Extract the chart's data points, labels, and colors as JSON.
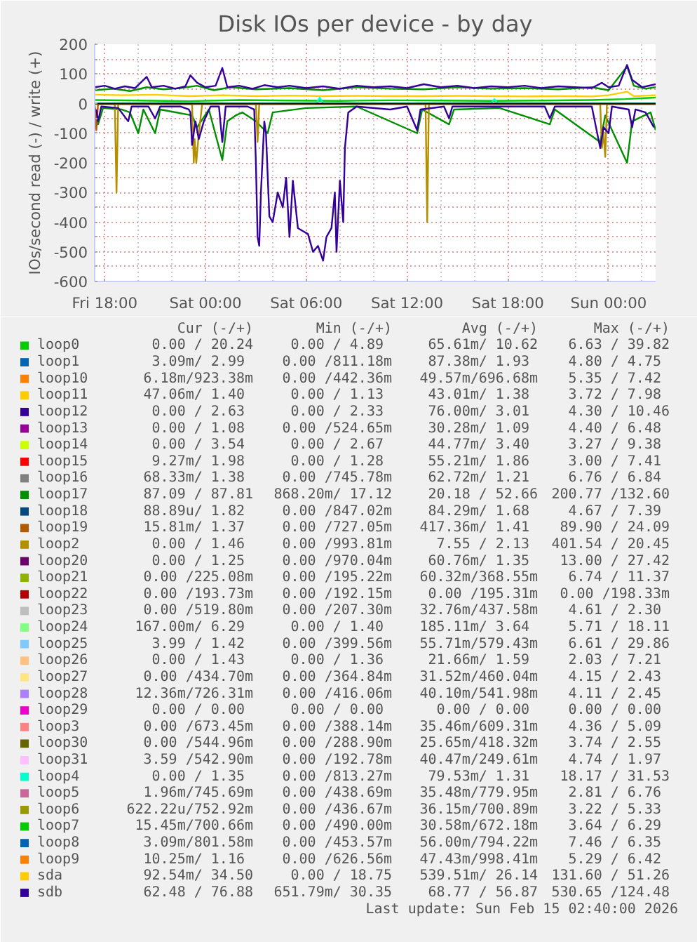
{
  "chart_data": {
    "type": "line",
    "title": "Disk IOs per device - by day",
    "ylabel": "IOs/second read (-) / write (+)",
    "xlim": [
      "2026-02-13T17:24",
      "2026-02-15T02:48"
    ],
    "ylim": [
      -600,
      200
    ],
    "xticks": [
      {
        "value": "2026-02-13T18:00",
        "label": "Fri 18:00"
      },
      {
        "value": "2026-02-14T00:00",
        "label": "Sat 00:00"
      },
      {
        "value": "2026-02-14T06:00",
        "label": "Sat 06:00"
      },
      {
        "value": "2026-02-14T12:00",
        "label": "Sat 12:00"
      },
      {
        "value": "2026-02-14T18:00",
        "label": "Sat 18:00"
      },
      {
        "value": "2026-02-15T00:00",
        "label": "Sun 00:00"
      }
    ],
    "yticks": [
      200,
      100,
      0,
      -100,
      -200,
      -300,
      -400,
      -500,
      -600,
      {
        "value": 150,
        "label": null
      },
      {
        "value": 50,
        "label": null
      },
      {
        "value": -50,
        "label": null
      },
      {
        "value": -150,
        "label": null
      },
      {
        "value": -250,
        "label": null
      },
      {
        "value": -350,
        "label": null
      },
      {
        "value": -450,
        "label": null
      },
      {
        "value": -550,
        "label": null
      }
    ],
    "grid": true,
    "legend": "bottom",
    "series": [
      {
        "name": "loop0",
        "color": "#00cc00",
        "x": [
          "2026-02-13T17:24",
          "2026-02-13T20:00",
          "2026-02-13T23:00",
          "2026-02-14T02:00",
          "2026-02-14T05:00",
          "2026-02-14T08:00",
          "2026-02-14T11:00",
          "2026-02-14T14:00",
          "2026-02-14T17:00",
          "2026-02-14T20:00",
          "2026-02-14T23:00",
          "2026-02-15T01:00",
          "2026-02-15T02:48"
        ],
        "values": [
          12,
          10,
          8,
          12,
          10,
          9,
          11,
          10,
          9,
          10,
          12,
          15,
          20
        ]
      },
      {
        "name": "loop1",
        "color": "#0066b3",
        "values": [
          null,
          null
        ]
      },
      {
        "name": "loop10",
        "color": "#ff8000",
        "values": [
          null,
          null
        ]
      },
      {
        "name": "loop11",
        "color": "#ffcc00",
        "values": [
          null,
          null
        ]
      },
      {
        "name": "loop12",
        "color": "#330099",
        "values": [
          null,
          null
        ]
      },
      {
        "name": "loop13",
        "color": "#990099",
        "values": [
          null,
          null
        ]
      },
      {
        "name": "loop14",
        "color": "#ccff00",
        "values": [
          null,
          null
        ]
      },
      {
        "name": "loop15",
        "color": "#ff0000",
        "values": [
          null,
          null
        ]
      },
      {
        "name": "loop16",
        "color": "#808080",
        "values": [
          null,
          null
        ]
      },
      {
        "name": "loop17",
        "color": "#008f00",
        "x": [
          "2026-02-13T17:24",
          "2026-02-13T18:30",
          "2026-02-13T19:30",
          "2026-02-13T20:30",
          "2026-02-13T21:30",
          "2026-02-13T22:30",
          "2026-02-13T23:30",
          "2026-02-14T00:30",
          "2026-02-14T01:30",
          "2026-02-14T03:00",
          "2026-02-14T05:00",
          "2026-02-14T07:00",
          "2026-02-14T09:00",
          "2026-02-14T11:00",
          "2026-02-14T13:00",
          "2026-02-14T15:00",
          "2026-02-14T17:00",
          "2026-02-14T19:00",
          "2026-02-14T21:00",
          "2026-02-14T23:00",
          "2026-02-15T00:00",
          "2026-02-15T01:06",
          "2026-02-15T01:30",
          "2026-02-15T02:12",
          "2026-02-15T02:48"
        ],
        "values": [
          45,
          50,
          42,
          55,
          48,
          52,
          60,
          45,
          55,
          48,
          52,
          45,
          55,
          50,
          48,
          55,
          50,
          52,
          48,
          55,
          45,
          125,
          60,
          50,
          55
        ]
      },
      {
        "name": "loop18",
        "color": "#00487d",
        "values": [
          null,
          null
        ]
      },
      {
        "name": "loop19",
        "color": "#b35a00",
        "values": [
          null,
          null
        ]
      },
      {
        "name": "loop2",
        "color": "#b38f00",
        "values": [
          null,
          null
        ]
      },
      {
        "name": "loop20",
        "color": "#6b006b",
        "values": [
          null,
          null
        ]
      },
      {
        "name": "loop21",
        "color": "#8fb300",
        "values": [
          null,
          null
        ]
      },
      {
        "name": "loop22",
        "color": "#b30000",
        "values": [
          null,
          null
        ]
      },
      {
        "name": "loop23",
        "color": "#bebebe",
        "values": [
          null,
          null
        ]
      },
      {
        "name": "loop24",
        "color": "#80ff80",
        "values": [
          null,
          null
        ]
      },
      {
        "name": "loop25",
        "color": "#80c9ff",
        "values": [
          null,
          null
        ]
      },
      {
        "name": "loop26",
        "color": "#ffc080",
        "values": [
          null,
          null
        ]
      },
      {
        "name": "loop27",
        "color": "#ffe680",
        "values": [
          null,
          null
        ]
      },
      {
        "name": "loop28",
        "color": "#aa80ff",
        "values": [
          null,
          null
        ]
      },
      {
        "name": "loop29",
        "color": "#ee00cc",
        "values": [
          null,
          null
        ]
      },
      {
        "name": "loop3",
        "color": "#ff8080",
        "values": [
          null,
          null
        ]
      },
      {
        "name": "loop30",
        "color": "#666600",
        "values": [
          null,
          null
        ]
      },
      {
        "name": "loop31",
        "color": "#ffbfff",
        "values": [
          null,
          null
        ]
      },
      {
        "name": "loop4",
        "color": "#00ffcc",
        "x": [
          "2026-02-13T17:24",
          "2026-02-14T06:36",
          "2026-02-14T06:48",
          "2026-02-14T07:00",
          "2026-02-14T17:00",
          "2026-02-14T17:12",
          "2026-02-14T17:24",
          "2026-02-15T02:48"
        ],
        "values": [
          1,
          1,
          20,
          1,
          1,
          15,
          1,
          1
        ]
      },
      {
        "name": "loop5",
        "color": "#cc6699",
        "values": [
          null,
          null
        ]
      },
      {
        "name": "loop6",
        "color": "#999900",
        "values": [
          null,
          null
        ]
      },
      {
        "name": "loop7",
        "color": "#00cc00",
        "values": [
          null,
          null
        ]
      },
      {
        "name": "loop8",
        "color": "#0066b3",
        "values": [
          null,
          null
        ]
      },
      {
        "name": "loop9",
        "color": "#ff8000",
        "values": [
          null,
          null
        ]
      },
      {
        "name": "sda",
        "color": "#ffcc00",
        "x": [
          "2026-02-13T17:24",
          "2026-02-13T19:00",
          "2026-02-13T21:00",
          "2026-02-13T23:00",
          "2026-02-14T01:00",
          "2026-02-14T03:00",
          "2026-02-14T05:00",
          "2026-02-14T07:00",
          "2026-02-14T09:00",
          "2026-02-14T11:00",
          "2026-02-14T13:00",
          "2026-02-14T15:00",
          "2026-02-14T17:00",
          "2026-02-14T19:00",
          "2026-02-14T21:00",
          "2026-02-14T23:00",
          "2026-02-15T00:00",
          "2026-02-15T01:06",
          "2026-02-15T01:30",
          "2026-02-15T02:48"
        ],
        "values": [
          30,
          28,
          30,
          25,
          28,
          25,
          27,
          25,
          26,
          25,
          25,
          26,
          25,
          24,
          25,
          24,
          28,
          40,
          25,
          28
        ]
      },
      {
        "name": "sdb",
        "color": "#330099",
        "x": [
          "2026-02-13T17:24",
          "2026-02-13T18:00",
          "2026-02-13T18:36",
          "2026-02-13T19:12",
          "2026-02-13T19:48",
          "2026-02-13T20:30",
          "2026-02-13T20:48",
          "2026-02-13T21:30",
          "2026-02-13T22:12",
          "2026-02-13T22:48",
          "2026-02-13T23:06",
          "2026-02-13T23:30",
          "2026-02-14T00:00",
          "2026-02-14T00:36",
          "2026-02-14T01:00",
          "2026-02-14T01:18",
          "2026-02-14T02:00",
          "2026-02-14T02:48",
          "2026-02-14T03:30",
          "2026-02-14T04:18",
          "2026-02-14T05:00",
          "2026-02-14T06:00",
          "2026-02-14T07:00",
          "2026-02-14T08:00",
          "2026-02-14T09:00",
          "2026-02-14T10:00",
          "2026-02-14T11:00",
          "2026-02-14T12:00",
          "2026-02-14T13:00",
          "2026-02-14T14:00",
          "2026-02-14T15:00",
          "2026-02-14T16:00",
          "2026-02-14T17:00",
          "2026-02-14T18:00",
          "2026-02-14T19:00",
          "2026-02-14T20:00",
          "2026-02-14T21:00",
          "2026-02-14T22:00",
          "2026-02-14T23:00",
          "2026-02-14T23:36",
          "2026-02-15T00:00",
          "2026-02-15T00:36",
          "2026-02-15T01:06",
          "2026-02-15T01:24",
          "2026-02-15T02:00",
          "2026-02-15T02:48"
        ],
        "values": [
          55,
          60,
          50,
          58,
          52,
          90,
          55,
          60,
          50,
          58,
          95,
          70,
          55,
          60,
          120,
          55,
          60,
          50,
          62,
          55,
          60,
          52,
          58,
          50,
          60,
          55,
          58,
          52,
          65,
          55,
          60,
          52,
          58,
          55,
          60,
          52,
          58,
          55,
          52,
          70,
          55,
          60,
          130,
          80,
          55,
          65
        ]
      },
      {
        "color": "#008f00",
        "x": [
          "2026-02-13T17:24",
          "2026-02-13T17:36",
          "2026-02-13T17:54",
          "2026-02-13T19:00",
          "2026-02-13T19:30",
          "2026-02-13T20:00",
          "2026-02-13T20:18",
          "2026-02-13T21:00",
          "2026-02-13T21:18",
          "2026-02-13T23:12",
          "2026-02-13T23:30",
          "2026-02-14T00:12",
          "2026-02-14T01:00",
          "2026-02-14T01:18",
          "2026-02-14T01:48",
          "2026-02-14T02:12",
          "2026-02-14T03:00",
          "2026-02-14T03:42",
          "2026-02-14T04:00",
          "2026-02-14T06:00",
          "2026-02-14T09:00",
          "2026-02-14T12:36",
          "2026-02-14T12:54",
          "2026-02-14T14:30",
          "2026-02-14T14:48",
          "2026-02-14T17:30",
          "2026-02-14T20:30",
          "2026-02-14T20:48",
          "2026-02-14T23:30",
          "2026-02-14T23:48",
          "2026-02-15T01:06",
          "2026-02-15T01:24",
          "2026-02-15T02:30",
          "2026-02-15T02:48"
        ],
        "values": [
          -10,
          -70,
          -15,
          -20,
          -30,
          -100,
          -20,
          -100,
          -20,
          -40,
          -80,
          -20,
          -190,
          -60,
          -40,
          -30,
          -60,
          -100,
          -30,
          -15,
          -10,
          -100,
          -20,
          -70,
          -20,
          -15,
          -70,
          -20,
          -130,
          -40,
          -200,
          -60,
          -30,
          -90
        ]
      },
      {
        "color": "#b38f00",
        "x": [
          "2026-02-13T17:24",
          "2026-02-13T18:36",
          "2026-02-13T18:42",
          "2026-02-13T18:48",
          "2026-02-13T23:12",
          "2026-02-13T23:18",
          "2026-02-13T23:21",
          "2026-02-13T23:27",
          "2026-02-13T23:36",
          "2026-02-13T23:48",
          "2026-02-14T03:00",
          "2026-02-14T03:06",
          "2026-02-14T03:12",
          "2026-02-14T13:06",
          "2026-02-14T13:12",
          "2026-02-14T13:18",
          "2026-02-14T23:30",
          "2026-02-14T23:36",
          "2026-02-14T23:42",
          "2026-02-14T23:48",
          "2026-02-14T23:54",
          "2026-02-15T02:48"
        ],
        "values": [
          -2,
          -2,
          -300,
          -2,
          -2,
          -200,
          -120,
          -200,
          -100,
          -2,
          -2,
          -130,
          -2,
          -2,
          -400,
          -2,
          -2,
          -150,
          -100,
          -180,
          -2,
          -2
        ]
      },
      {
        "color": "#b35a00",
        "x": [
          "2026-02-13T17:24",
          "2026-02-13T17:30",
          "2026-02-13T17:36",
          "2026-02-15T02:48"
        ],
        "values": [
          -2,
          -90,
          -2,
          -2
        ]
      },
      {
        "color": "#330099",
        "x": [
          "2026-02-13T17:30",
          "2026-02-13T17:36",
          "2026-02-13T17:48",
          "2026-02-13T18:48",
          "2026-02-13T19:24",
          "2026-02-13T19:36",
          "2026-02-13T20:36",
          "2026-02-13T21:00",
          "2026-02-13T21:18",
          "2026-02-13T22:30",
          "2026-02-13T23:00",
          "2026-02-13T23:06",
          "2026-02-13T23:12",
          "2026-02-13T23:24",
          "2026-02-13T23:36",
          "2026-02-13T23:54",
          "2026-02-14T00:18",
          "2026-02-14T00:48",
          "2026-02-14T01:00",
          "2026-02-14T01:12",
          "2026-02-14T02:30",
          "2026-02-14T02:54",
          "2026-02-14T03:00",
          "2026-02-14T03:06",
          "2026-02-14T03:12",
          "2026-02-14T03:18",
          "2026-02-14T03:30",
          "2026-02-14T03:36",
          "2026-02-14T03:48",
          "2026-02-14T04:00",
          "2026-02-14T04:18",
          "2026-02-14T04:36",
          "2026-02-14T04:48",
          "2026-02-14T05:00",
          "2026-02-14T05:12",
          "2026-02-14T05:30",
          "2026-02-14T05:48",
          "2026-02-14T06:06",
          "2026-02-14T06:24",
          "2026-02-14T06:42",
          "2026-02-14T07:00",
          "2026-02-14T07:12",
          "2026-02-14T07:30",
          "2026-02-14T07:42",
          "2026-02-14T07:48",
          "2026-02-14T08:00",
          "2026-02-14T08:12",
          "2026-02-14T08:18",
          "2026-02-14T08:30",
          "2026-02-14T09:00",
          "2026-02-14T11:00",
          "2026-02-14T12:00",
          "2026-02-14T12:36",
          "2026-02-14T12:48",
          "2026-02-14T14:12",
          "2026-02-14T14:30",
          "2026-02-14T14:42",
          "2026-02-14T18:00",
          "2026-02-14T20:12",
          "2026-02-14T20:30",
          "2026-02-14T20:48",
          "2026-02-14T23:00",
          "2026-02-14T23:30",
          "2026-02-14T23:42",
          "2026-02-15T00:00",
          "2026-02-15T00:12",
          "2026-02-15T01:12",
          "2026-02-15T01:24",
          "2026-02-15T01:36",
          "2026-02-15T02:12",
          "2026-02-15T02:42"
        ],
        "values": [
          -20,
          -60,
          -10,
          -15,
          -60,
          -10,
          -10,
          -50,
          -10,
          -10,
          -20,
          -30,
          -140,
          -60,
          -120,
          -60,
          -10,
          -10,
          -130,
          -10,
          -10,
          -20,
          -200,
          -450,
          -480,
          -300,
          -60,
          -100,
          -380,
          -400,
          -300,
          -350,
          -250,
          -450,
          -260,
          -420,
          -430,
          -440,
          -500,
          -480,
          -530,
          -450,
          -420,
          -300,
          -500,
          -260,
          -400,
          -150,
          -30,
          -10,
          -20,
          -10,
          -90,
          -20,
          -10,
          -50,
          -10,
          -10,
          -10,
          -50,
          -10,
          -10,
          -150,
          -80,
          -100,
          -10,
          -20,
          -80,
          -20,
          -30,
          -80
        ]
      }
    ],
    "annotations": [
      "Cur (-/+)",
      "Min (-/+)",
      "Avg (-/+)",
      "Max (-/+)",
      "0.00 / 20.24",
      "0.00 /  4.89",
      "65.61m/ 10.62",
      "6.63 / 39.82",
      "3.09m/  2.99",
      "0.00 /811.18m",
      "87.38m/  1.93",
      "4.80 /  4.75",
      "6.18m/923.38m",
      "0.00 /442.36m",
      "49.57m/696.68m",
      "5.35 /  7.42",
      "47.06m/  1.40",
      "0.00 /  1.13",
      "43.01m/  1.38",
      "3.72 /  7.98",
      "0.00 /  2.63",
      "0.00 /  2.33",
      "76.00m/  3.01",
      "4.30 / 10.46",
      "0.00 /  1.08",
      "0.00 /524.65m",
      "30.28m/  1.09",
      "4.40 /  6.48",
      "0.00 /  3.54",
      "0.00 /  2.67",
      "44.77m/  3.40",
      "3.27 /  9.38",
      "9.27m/  1.98",
      "0.00 /  1.28",
      "55.21m/  1.86",
      "3.00 /  7.41",
      "68.33m/  1.38",
      "0.00 /745.78m",
      "62.72m/  1.21",
      "6.76 /  6.84",
      "87.09 / 87.81",
      "868.20m/ 17.12",
      "20.18 / 52.66",
      "200.77 /132.60",
      "88.89u/  1.82",
      "0.00 /847.02m",
      "84.29m/  1.68",
      "4.67 /  7.39",
      "15.81m/  1.37",
      "0.00 /727.05m",
      "417.36m/  1.41",
      "89.90 / 24.09",
      "0.00 /  1.46",
      "0.00 /993.81m",
      "7.55 /  2.13",
      "401.54 / 20.45",
      "0.00 /  1.25",
      "0.00 /970.04m",
      "60.76m/  1.35",
      "13.00 / 27.42",
      "0.00 /225.08m",
      "0.00 /195.22m",
      "60.32m/368.55m",
      "6.74 / 11.37",
      "0.00 /193.73m",
      "0.00 /192.15m",
      "0.00 /195.31m",
      "0.00 /198.33m",
      "0.00 /519.80m",
      "0.00 /207.30m",
      "32.76m/437.58m",
      "4.61 /  2.30",
      "167.00m/  6.29",
      "0.00 /  1.40",
      "185.11m/  3.64",
      "5.71 / 18.11",
      "3.99 /  1.42",
      "0.00 /399.56m",
      "55.71m/579.43m",
      "6.61 / 29.86",
      "0.00 /  1.43",
      "0.00 /  1.36",
      "21.66m/  1.59",
      "2.03 /  7.21",
      "0.00 /434.70m",
      "0.00 /364.84m",
      "31.52m/460.04m",
      "4.15 /  2.43",
      "12.36m/726.31m",
      "0.00 /416.06m",
      "40.10m/541.98m",
      "4.11 /  2.45",
      "0.00 /  0.00",
      "0.00 /  0.00",
      "0.00 /  0.00",
      "0.00 /  0.00",
      "0.00 /673.45m",
      "0.00 /388.14m",
      "35.46m/609.31m",
      "4.36 /  5.09",
      "0.00 /544.96m",
      "0.00 /288.90m",
      "25.65m/418.32m",
      "3.74 /  2.55",
      "3.59 /542.90m",
      "0.00 /192.78m",
      "40.47m/249.61m",
      "4.74 /  1.97",
      "0.00 /  1.35",
      "0.00 /813.27m",
      "79.53m/  1.31",
      "18.17 / 31.53",
      "1.96m/745.69m",
      "0.00 /438.69m",
      "35.48m/779.95m",
      "2.81 /  6.76",
      "622.22u/752.92m",
      "0.00 /436.67m",
      "36.15m/700.89m",
      "3.22 /  5.33",
      "15.45m/700.66m",
      "0.00 /490.00m",
      "30.58m/672.18m",
      "3.64 /  6.29",
      "3.09m/801.58m",
      "0.00 /453.57m",
      "56.00m/794.22m",
      "7.46 /  6.35",
      "10.25m/  1.16",
      "0.00 /626.56m",
      "47.43m/998.41m",
      "5.29 /  6.42",
      "92.54m/ 34.50",
      "0.00 / 18.75",
      "539.51m/ 26.14",
      "131.60 / 51.26",
      "62.48 / 76.88",
      "651.79m/ 30.35",
      "68.77 / 56.87",
      "530.65 /124.48",
      "Last update: Sun Feb 15 02:40:00 2026"
    ]
  }
}
